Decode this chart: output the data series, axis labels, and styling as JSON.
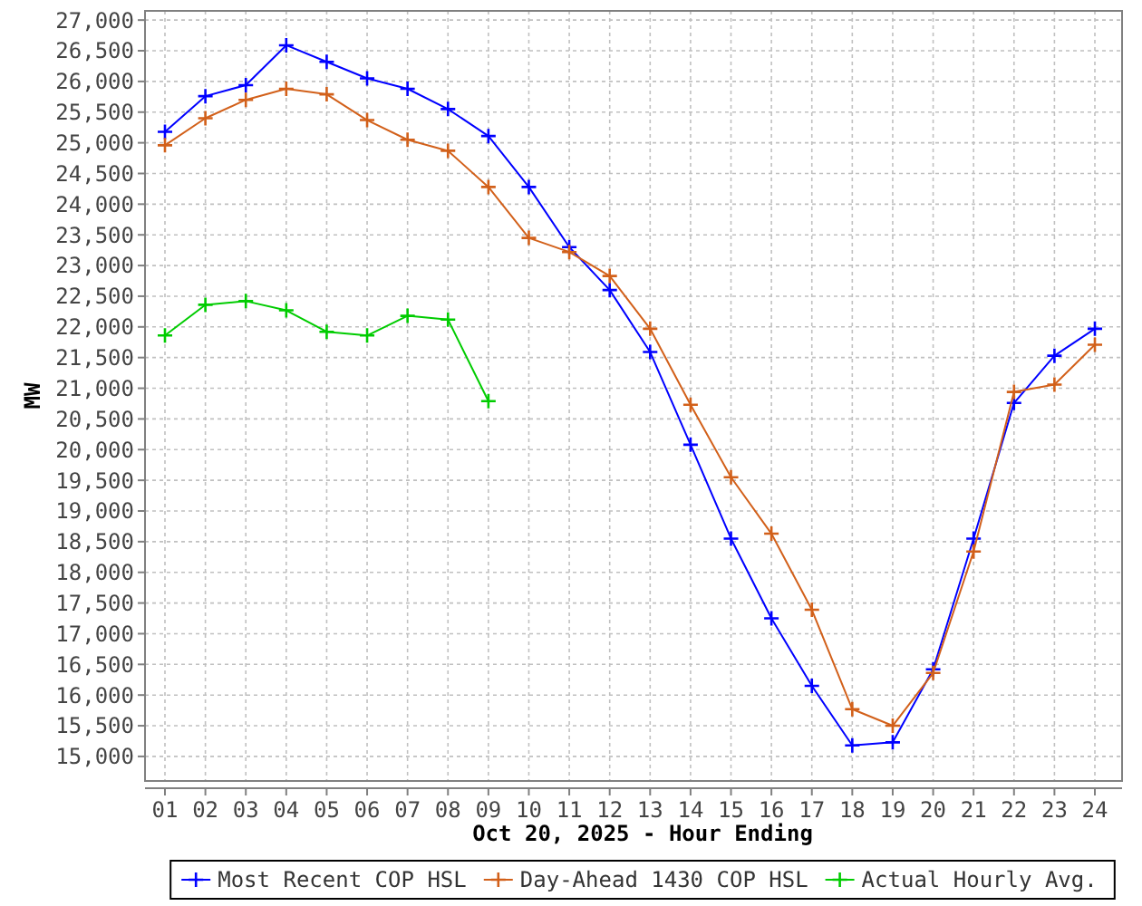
{
  "chart_data": {
    "type": "line",
    "xlabel": "Oct 20, 2025 - Hour Ending",
    "ylabel": "MW",
    "categories": [
      "01",
      "02",
      "03",
      "04",
      "05",
      "06",
      "07",
      "08",
      "09",
      "10",
      "11",
      "12",
      "13",
      "14",
      "15",
      "16",
      "17",
      "18",
      "19",
      "20",
      "21",
      "22",
      "23",
      "24"
    ],
    "series": [
      {
        "name": "Most Recent COP HSL",
        "color": "#0000ff",
        "values": [
          25180,
          25760,
          25940,
          26590,
          26320,
          26050,
          25880,
          25550,
          25110,
          24280,
          23300,
          22600,
          21590,
          20080,
          18550,
          17250,
          16150,
          15180,
          15230,
          16420,
          18550,
          20760,
          21530,
          21970
        ]
      },
      {
        "name": "Day-Ahead 1430 COP HSL",
        "color": "#d2601a",
        "values": [
          24960,
          25400,
          25700,
          25880,
          25790,
          25370,
          25050,
          24870,
          24280,
          23450,
          23220,
          22830,
          21970,
          20730,
          19550,
          18630,
          17390,
          15770,
          15500,
          16360,
          18340,
          20940,
          21060,
          21710
        ]
      },
      {
        "name": "Actual Hourly Avg.",
        "color": "#00cc00",
        "values": [
          21860,
          22360,
          22420,
          22270,
          21920,
          21860,
          22180,
          22120,
          20790,
          null,
          null,
          null,
          null,
          null,
          null,
          null,
          null,
          null,
          null,
          null,
          null,
          null,
          null,
          null
        ]
      }
    ],
    "ylim": [
      14600,
      27150
    ],
    "yticks": [
      {
        "value": 15000,
        "label": "15,000"
      },
      {
        "value": 15500,
        "label": "15,500"
      },
      {
        "value": 16000,
        "label": "16,000"
      },
      {
        "value": 16500,
        "label": "16,500"
      },
      {
        "value": 17000,
        "label": "17,000"
      },
      {
        "value": 17500,
        "label": "17,500"
      },
      {
        "value": 18000,
        "label": "18,000"
      },
      {
        "value": 18500,
        "label": "18,500"
      },
      {
        "value": 19000,
        "label": "19,000"
      },
      {
        "value": 19500,
        "label": "19,500"
      },
      {
        "value": 20000,
        "label": "20,000"
      },
      {
        "value": 20500,
        "label": "20,500"
      },
      {
        "value": 21000,
        "label": "21,000"
      },
      {
        "value": 21500,
        "label": "21,500"
      },
      {
        "value": 22000,
        "label": "22,000"
      },
      {
        "value": 22500,
        "label": "22,500"
      },
      {
        "value": 23000,
        "label": "23,000"
      },
      {
        "value": 23500,
        "label": "23,500"
      },
      {
        "value": 24000,
        "label": "24,000"
      },
      {
        "value": 24500,
        "label": "24,500"
      },
      {
        "value": 25000,
        "label": "25,000"
      },
      {
        "value": 25500,
        "label": "25,500"
      },
      {
        "value": 26000,
        "label": "26,000"
      },
      {
        "value": 26500,
        "label": "26,500"
      },
      {
        "value": 27000,
        "label": "27,000"
      }
    ],
    "grid": true,
    "legend": "bottom",
    "marker": "cross",
    "line_style": "solid"
  }
}
